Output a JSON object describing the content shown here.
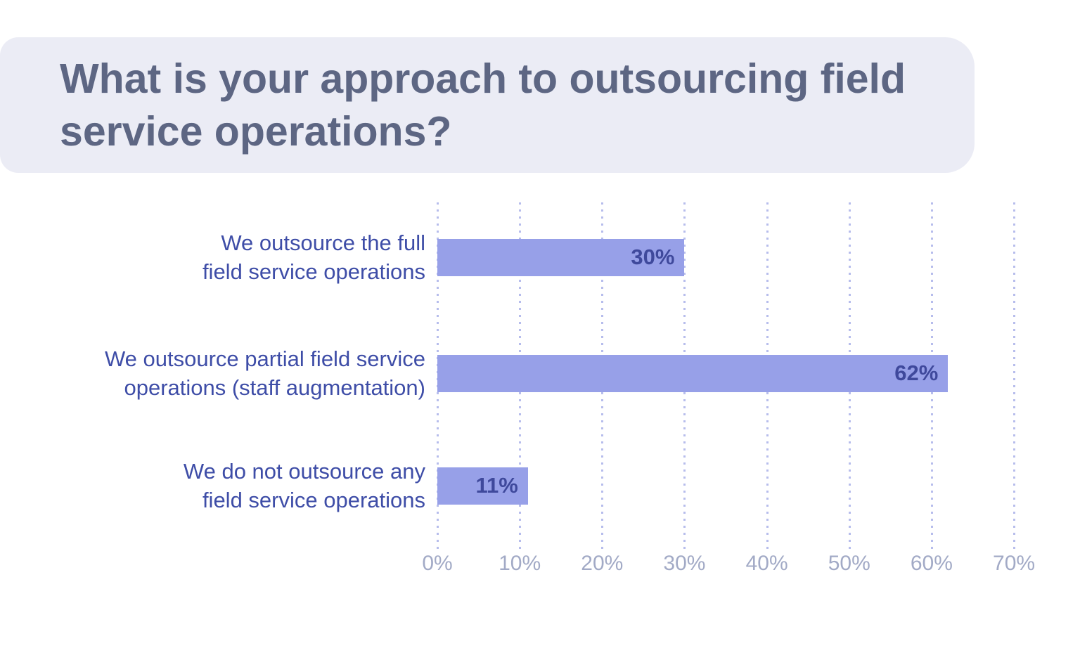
{
  "header": {
    "title": "What is your approach to outsourcing field service operations?",
    "background_color": "#ebecf5",
    "text_color": "#5d6683"
  },
  "chart_data": {
    "type": "bar",
    "orientation": "horizontal",
    "title": "What is your approach to outsourcing field service operations?",
    "categories": [
      "We outsource the full field service operations",
      "We outsource partial field service operations (staff augmentation)",
      "We do not outsource any field service operations"
    ],
    "category_lines": [
      "We outsource the full\nfield service operations",
      "We outsource partial field service\noperations (staff augmentation)",
      "We do not outsource any\nfield service operations"
    ],
    "values": [
      30,
      62,
      11
    ],
    "value_labels": [
      "30%",
      "62%",
      "11%"
    ],
    "xlabel": "",
    "ylabel": "",
    "xlim": [
      0,
      70
    ],
    "x_tick_values": [
      0,
      10,
      20,
      30,
      40,
      50,
      60,
      70
    ],
    "x_tick_labels": [
      "0%",
      "10%",
      "20%",
      "30%",
      "40%",
      "50%",
      "60%",
      "70%"
    ],
    "grid": "dotted-vertical",
    "legend": "none",
    "colors": {
      "bar_fill": "#97a0e8",
      "value_text": "#3f499c",
      "category_text": "#3e4da7",
      "tick_text": "#a2aac6",
      "gridline": "#b7bdec"
    }
  }
}
